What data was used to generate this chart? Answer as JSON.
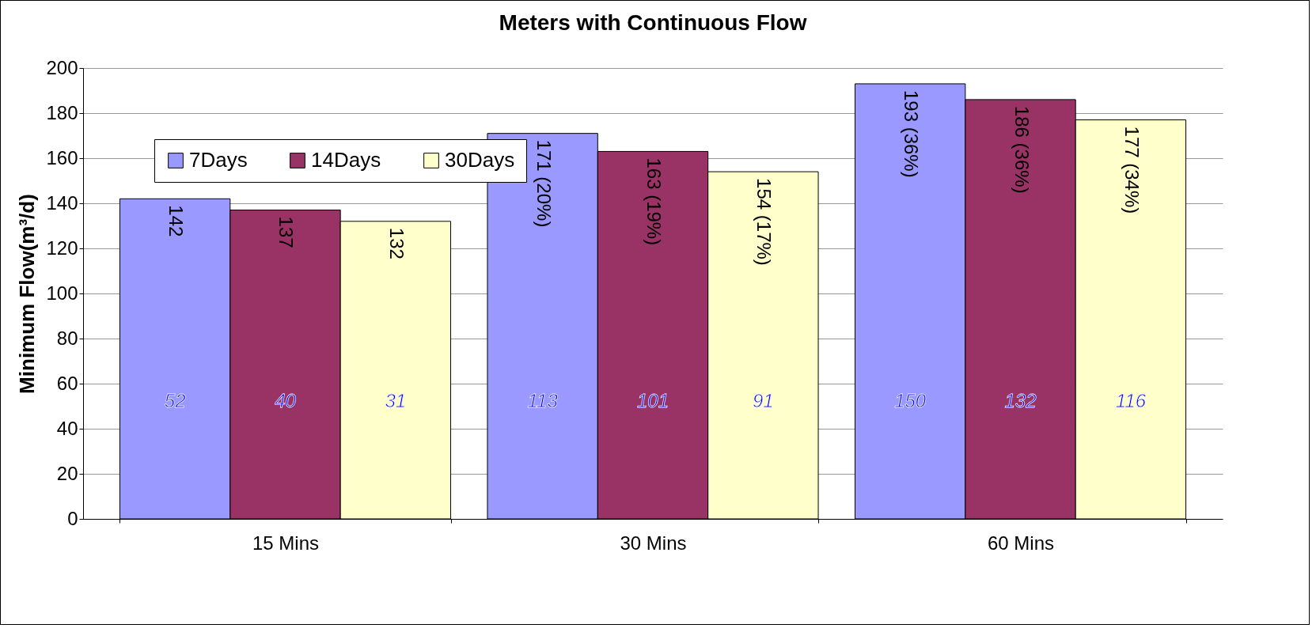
{
  "chart_data": {
    "type": "bar",
    "title": "Meters with Continuous Flow",
    "ylabel": "Minimum Flow(m³/d)",
    "categories": [
      "15 Mins",
      "30 Mins",
      "60 Mins"
    ],
    "series": [
      {
        "name": "7Days",
        "color": "#9999ff",
        "values": [
          142,
          171,
          193
        ],
        "value_labels": [
          "142",
          "171 (20%)",
          "193 (36%)"
        ]
      },
      {
        "name": "14Days",
        "color": "#993366",
        "values": [
          137,
          163,
          186
        ],
        "value_labels": [
          "137",
          "163 (19%)",
          "186 (36%)"
        ]
      },
      {
        "name": "30Days",
        "color": "#ffffcc",
        "values": [
          132,
          154,
          177
        ],
        "value_labels": [
          "132",
          "154 (17%)",
          "177 (34%)"
        ]
      }
    ],
    "annotations": [
      "52",
      "40",
      "31",
      "113",
      "101",
      "91",
      "150",
      "132",
      "116"
    ],
    "ylim": [
      0,
      200
    ],
    "yticks": [
      0,
      20,
      40,
      60,
      80,
      100,
      120,
      140,
      160,
      180,
      200
    ],
    "grid": "y",
    "legend": "top left"
  }
}
